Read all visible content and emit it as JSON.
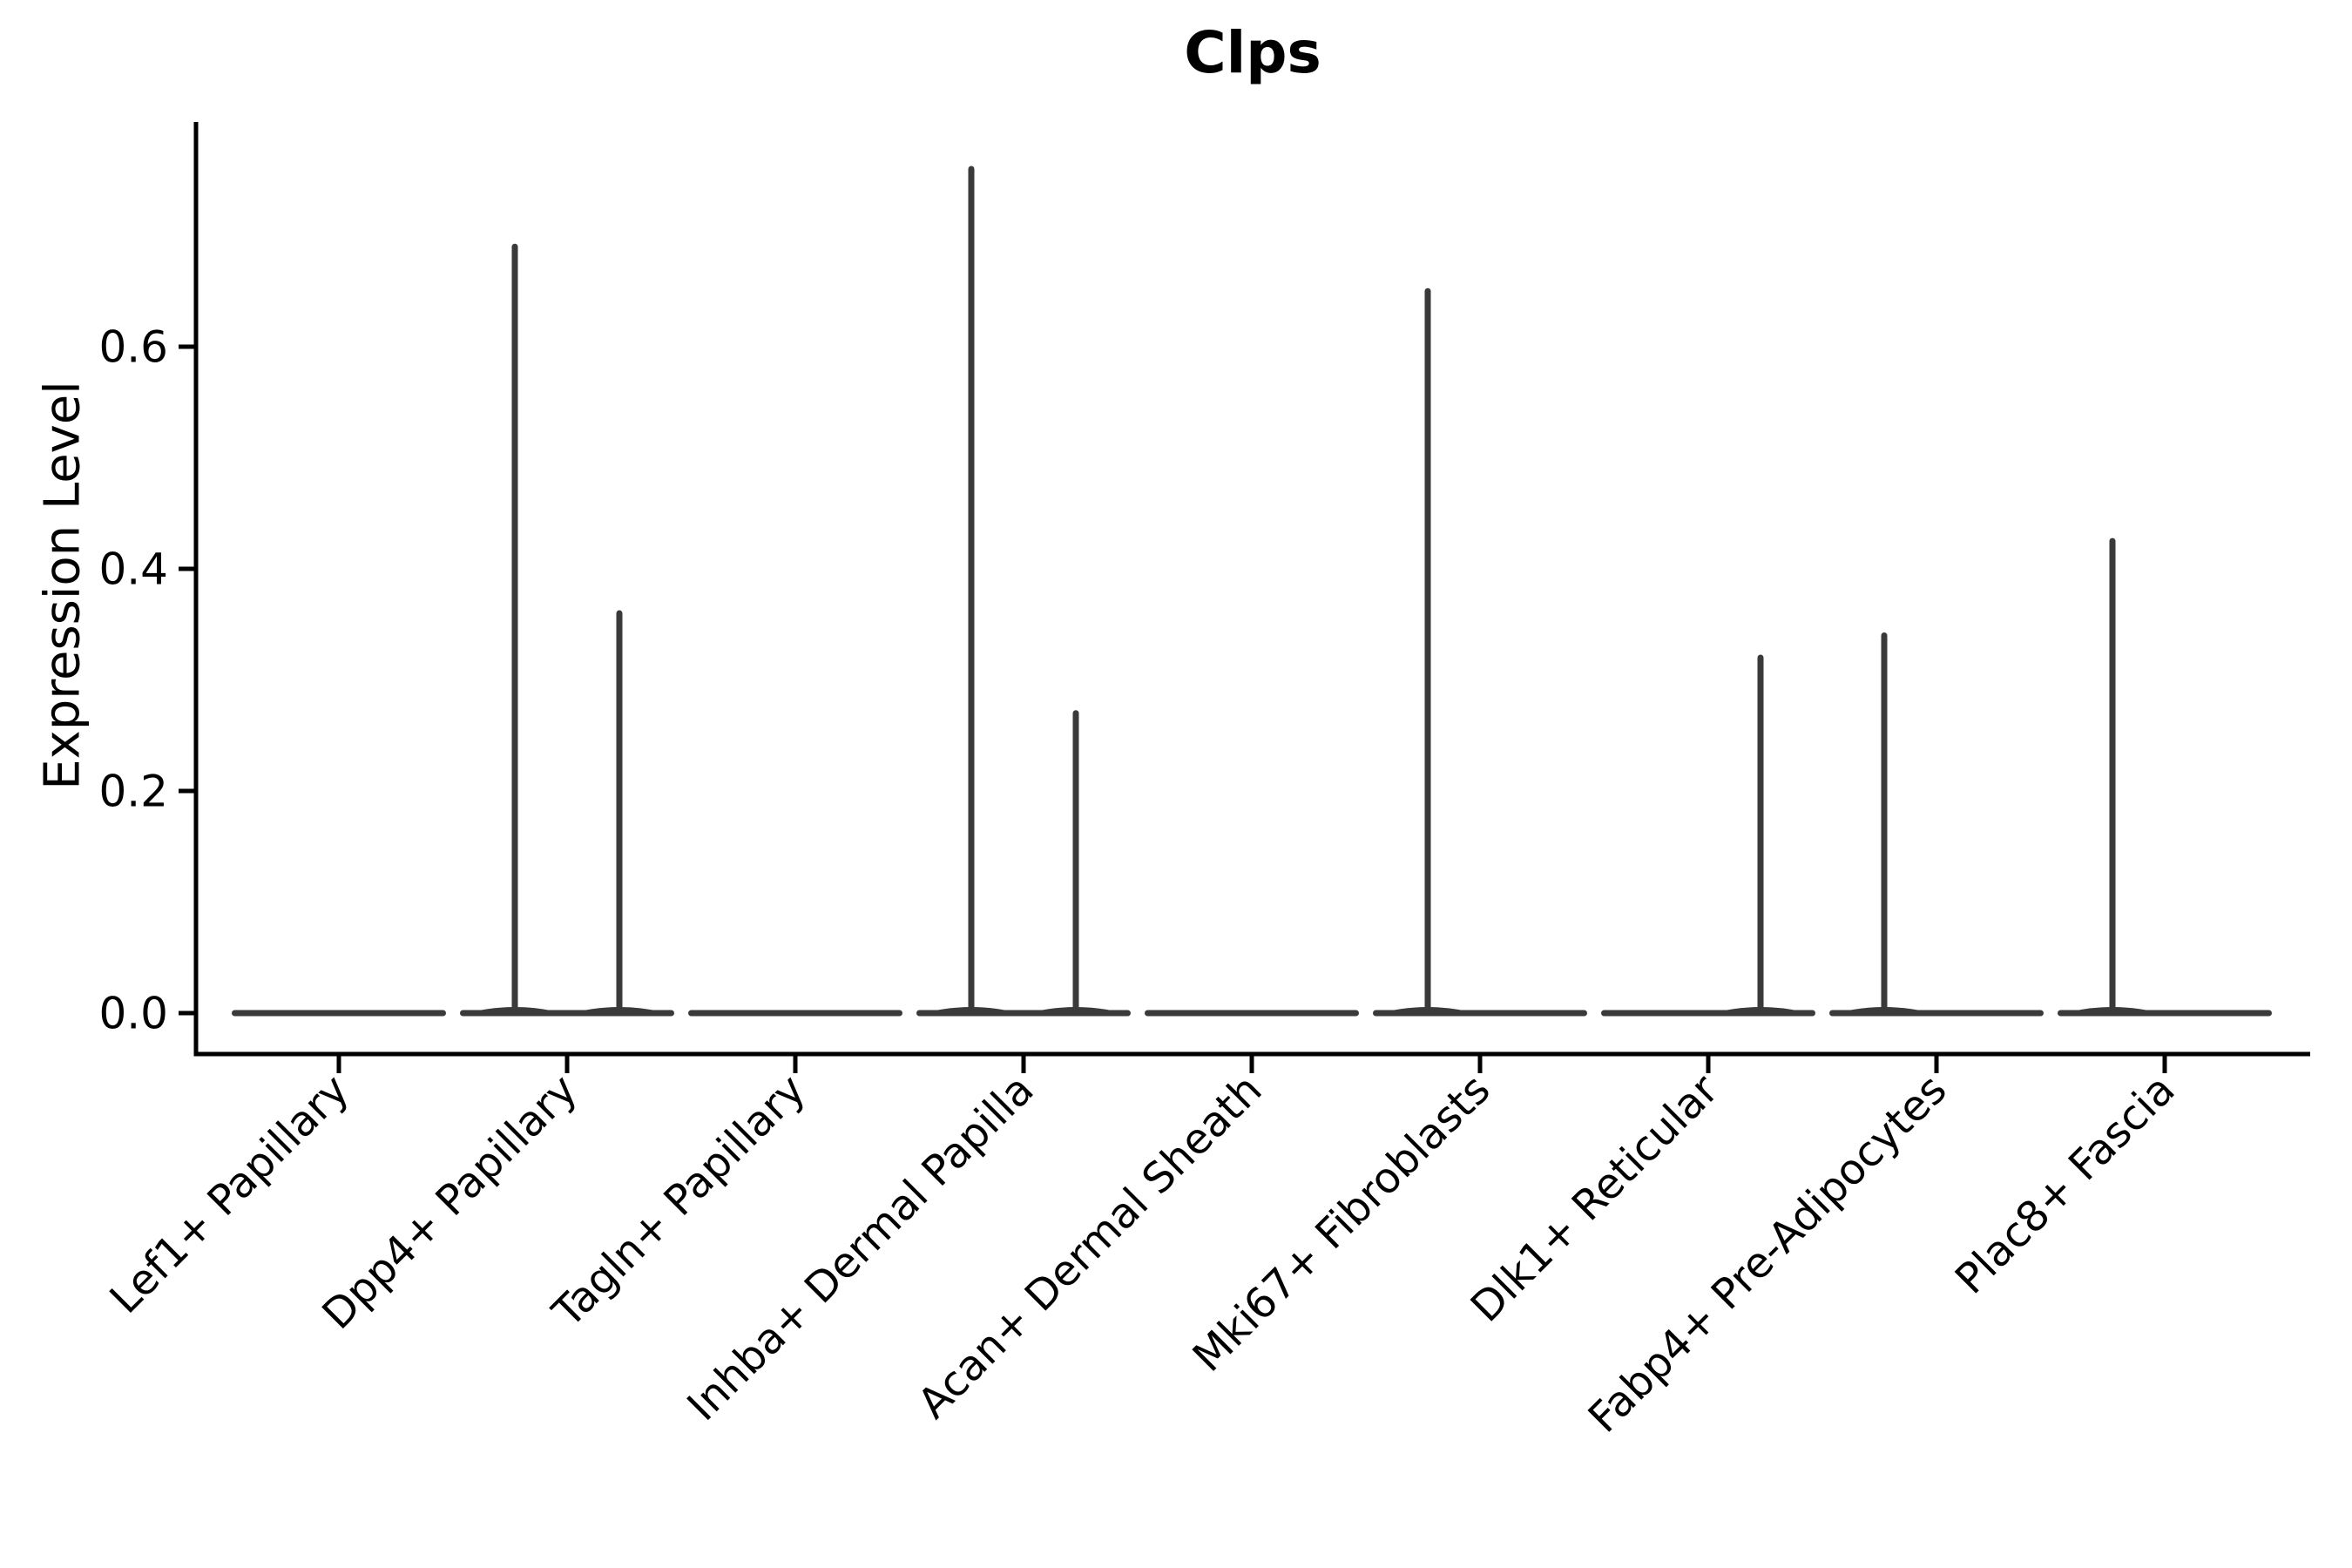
{
  "chart_data": {
    "type": "violin",
    "title": "Clps",
    "ylabel": "Expression Level",
    "xlabel": "",
    "yticks": [
      0.0,
      0.2,
      0.4,
      0.6
    ],
    "ytick_labels": [
      "0.0",
      "0.2",
      "0.4",
      "0.6"
    ],
    "ylim": [
      -0.04,
      0.8
    ],
    "grid": false,
    "legend": null,
    "violin_color": "#3a3a3a",
    "axis_color": "#000000",
    "categories": [
      {
        "label": "Lef1+ Papillary",
        "spikes": []
      },
      {
        "label": "Dpp4+ Papillary",
        "spikes": [
          {
            "half": "left",
            "max": 0.69
          },
          {
            "half": "right",
            "max": 0.36
          }
        ]
      },
      {
        "label": "Tagln+ Papillary",
        "spikes": []
      },
      {
        "label": "Inhba+ Dermal Papilla",
        "spikes": [
          {
            "half": "left",
            "max": 0.76
          },
          {
            "half": "right",
            "max": 0.27
          }
        ]
      },
      {
        "label": "Acan+ Dermal Sheath",
        "spikes": []
      },
      {
        "label": "Mki67+ Fibroblasts",
        "spikes": [
          {
            "half": "left",
            "max": 0.65
          }
        ]
      },
      {
        "label": "Dlk1+ Reticular",
        "spikes": [
          {
            "half": "right",
            "max": 0.32
          }
        ]
      },
      {
        "label": "Fabp4+ Pre-Adipocytes",
        "spikes": [
          {
            "half": "left",
            "max": 0.34
          }
        ]
      },
      {
        "label": "Plac8+ Fascia",
        "spikes": [
          {
            "half": "left",
            "max": 0.425
          }
        ]
      }
    ]
  }
}
